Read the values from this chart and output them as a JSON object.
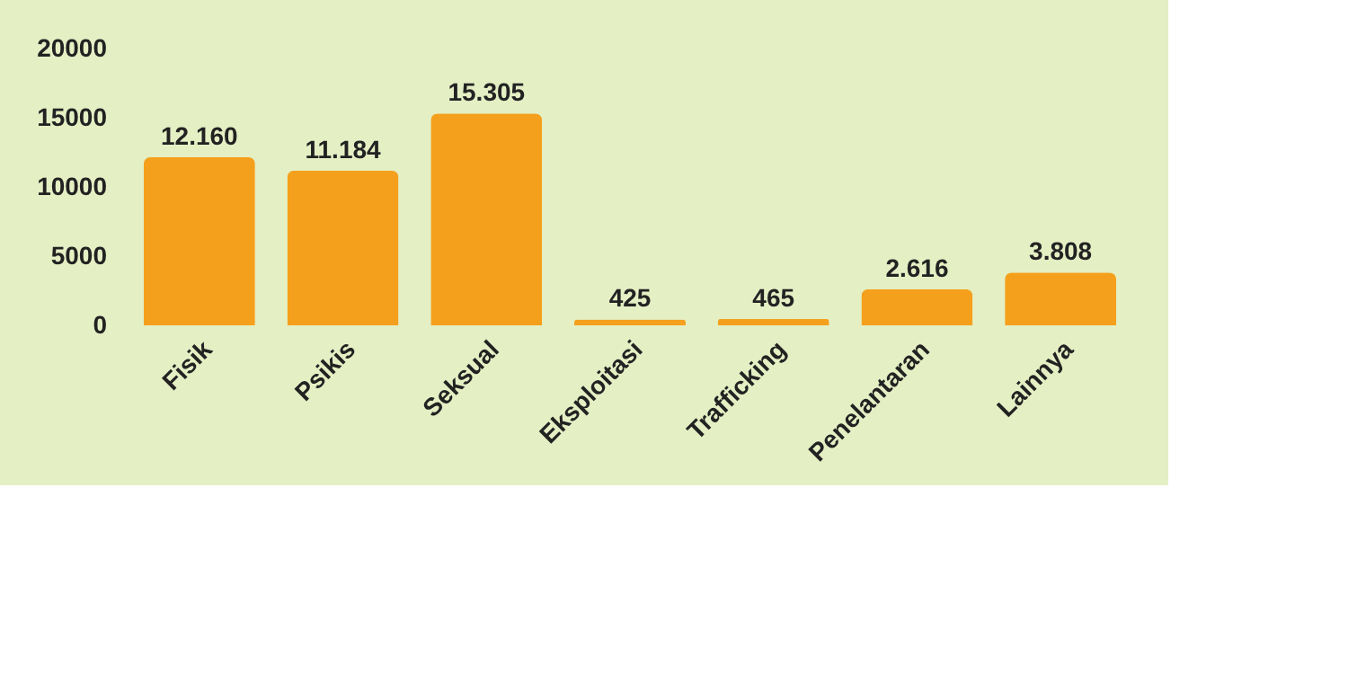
{
  "chart_data": {
    "type": "bar",
    "categories": [
      "Fisik",
      "Psikis",
      "Seksual",
      "Eksploitasi",
      "Trafficking",
      "Penelantaran",
      "Lainnya"
    ],
    "values": [
      12160,
      11184,
      15305,
      425,
      465,
      2616,
      3808
    ],
    "value_labels": [
      "12.160",
      "11.184",
      "15.305",
      "425",
      "465",
      "2.616",
      "3.808"
    ],
    "color": "#f5a01c",
    "ylim": [
      0,
      20000
    ],
    "yticks": [
      0,
      5000,
      10000,
      15000,
      20000
    ],
    "grid": false
  }
}
